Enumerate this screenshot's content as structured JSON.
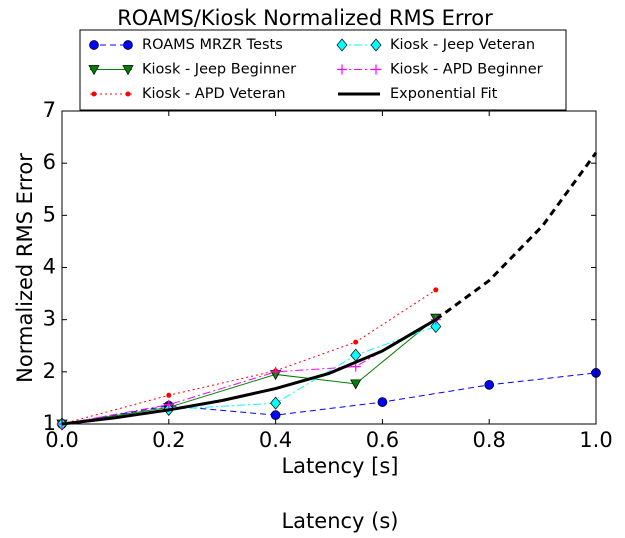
{
  "chart_data": {
    "type": "line",
    "title": "ROAMS/Kiosk Normalized RMS Error",
    "xlabel": "Latency [s]",
    "ylabel": "Normalized RMS Error",
    "secondary_xlabel": "Latency (s)",
    "xlim": [
      0,
      1
    ],
    "ylim": [
      1,
      7
    ],
    "xticks": [
      {
        "value": 0,
        "label": "0.0"
      },
      {
        "value": 0.2,
        "label": "0.2"
      },
      {
        "value": 0.4,
        "label": "0.4"
      },
      {
        "value": 0.6,
        "label": "0.6"
      },
      {
        "value": 0.8,
        "label": "0.8"
      },
      {
        "value": 1,
        "label": "1.0"
      }
    ],
    "yticks": [
      1,
      2,
      3,
      4,
      5,
      6,
      7
    ],
    "legend": "top",
    "series": [
      {
        "name": "ROAMS MRZR Tests",
        "color": "#0000ff",
        "linestyle": "dashed",
        "marker": "circle",
        "x": [
          0,
          0.2,
          0.4,
          0.6,
          0.8,
          1.0
        ],
        "values": [
          1.0,
          1.35,
          1.17,
          1.42,
          1.75,
          1.98
        ]
      },
      {
        "name": "Kiosk - Jeep Beginner",
        "color": "#008000",
        "linestyle": "solid",
        "marker": "triangle-down",
        "x": [
          0,
          0.2,
          0.4,
          0.55,
          0.7
        ],
        "values": [
          1.0,
          1.32,
          1.95,
          1.77,
          3.03
        ]
      },
      {
        "name": "Kiosk - APD Veteran",
        "color": "#ff0000",
        "linestyle": "dotted",
        "marker": "dot",
        "x": [
          0,
          0.2,
          0.4,
          0.55,
          0.7
        ],
        "values": [
          1.0,
          1.55,
          2.02,
          2.57,
          3.57
        ]
      },
      {
        "name": "Kiosk - Jeep Veteran",
        "color": "#00ffff",
        "linestyle": "dashdot",
        "marker": "diamond",
        "x": [
          0,
          0.2,
          0.4,
          0.55,
          0.7
        ],
        "values": [
          1.0,
          1.28,
          1.4,
          2.32,
          2.87
        ]
      },
      {
        "name": "Kiosk - APD Beginner",
        "color": "#ff00ff",
        "linestyle": "dashdot",
        "marker": "plus",
        "x": [
          0,
          0.2,
          0.4,
          0.55,
          0.7
        ],
        "values": [
          1.0,
          1.37,
          2.0,
          2.1,
          3.0
        ]
      },
      {
        "name": "Exponential Fit",
        "color": "#000000",
        "linestyle": "solid",
        "marker": "none",
        "dash_after": 0.7,
        "x": [
          0,
          0.1,
          0.2,
          0.3,
          0.4,
          0.5,
          0.6,
          0.7,
          0.8,
          0.9,
          1.0
        ],
        "values": [
          1.0,
          1.12,
          1.27,
          1.45,
          1.68,
          1.97,
          2.4,
          3.0,
          3.75,
          4.8,
          6.2
        ]
      }
    ]
  }
}
